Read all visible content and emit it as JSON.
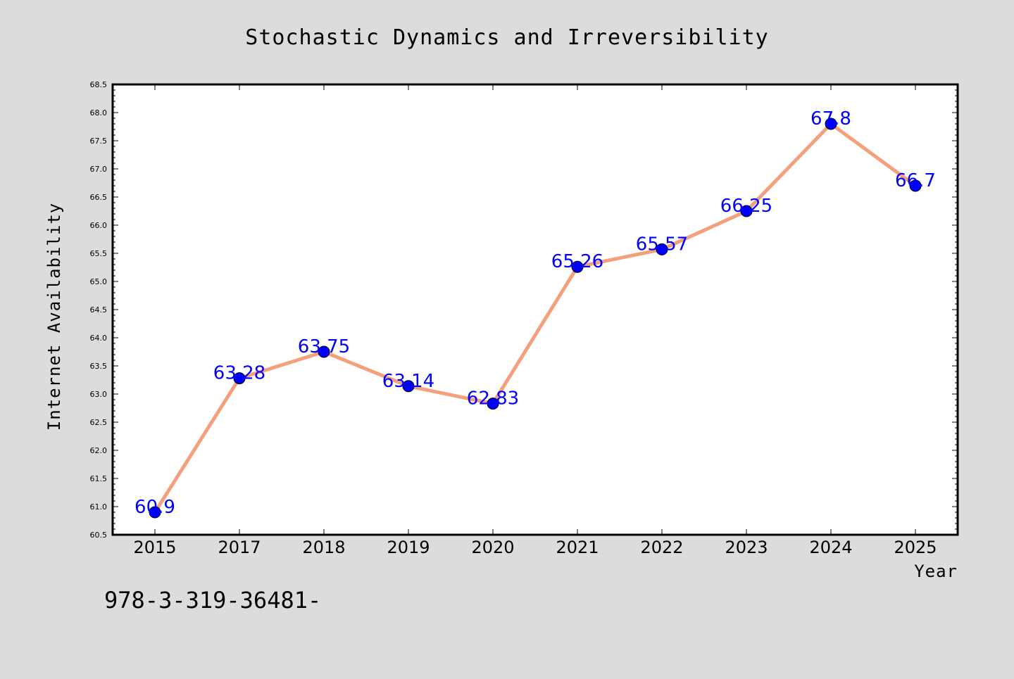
{
  "chart_data": {
    "type": "line",
    "title": "Stochastic Dynamics and Irreversibility",
    "xlabel": "Year",
    "ylabel": "Internet Availability",
    "categories": [
      "2015",
      "2017",
      "2018",
      "2019",
      "2020",
      "2021",
      "2022",
      "2023",
      "2024",
      "2025"
    ],
    "values": [
      60.9,
      63.28,
      63.75,
      63.14,
      62.83,
      65.26,
      65.57,
      66.25,
      67.8,
      66.7
    ],
    "data_labels": [
      "60.9",
      "63.28",
      "63.75",
      "63.14",
      "62.83",
      "65.26",
      "65.57",
      "66.25",
      "67.8",
      "66.7"
    ],
    "ylim": [
      60.5,
      68.5
    ],
    "yticks": [
      "60.5",
      "61.0",
      "61.5",
      "62.0",
      "62.5",
      "63.0",
      "63.5",
      "64.0",
      "64.5",
      "65.0",
      "65.5",
      "66.0",
      "66.5",
      "67.0",
      "67.5",
      "68.0",
      "68.5"
    ],
    "grid": false,
    "legend": "none",
    "line_color": "#f4a07c",
    "marker_color": "#0000ff",
    "label_color": "#0000ff"
  },
  "footer_text": "978-3-319-36481-"
}
